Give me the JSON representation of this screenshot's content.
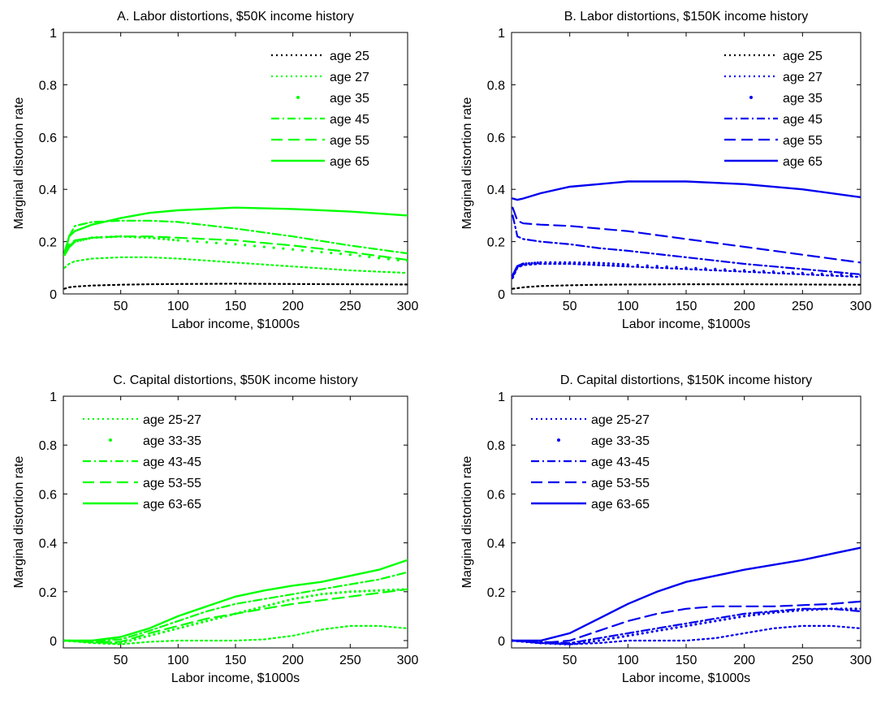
{
  "chart_data": [
    {
      "type": "line",
      "title": "A. Labor distortions, $50K income history",
      "xlabel": "Labor income, $1000s",
      "ylabel": "Marginal distortion rate",
      "xlim": [
        0,
        300
      ],
      "ylim": [
        0,
        1
      ],
      "xticks": [
        "50",
        "100",
        "150",
        "200",
        "250",
        "300"
      ],
      "yticks": [
        "0",
        "0.2",
        "0.4",
        "0.6",
        "0.8",
        "1"
      ],
      "legend_position": "top-right",
      "grid": false,
      "color": "#00ff00",
      "x": [
        1,
        5,
        10,
        25,
        50,
        75,
        100,
        150,
        200,
        250,
        300
      ],
      "series": [
        {
          "name": "age 25",
          "style": "dotted-black",
          "values": [
            0.02,
            0.025,
            0.028,
            0.032,
            0.035,
            0.037,
            0.038,
            0.039,
            0.038,
            0.037,
            0.036
          ]
        },
        {
          "name": "age 27",
          "style": "dotted",
          "values": [
            0.1,
            0.115,
            0.125,
            0.135,
            0.14,
            0.14,
            0.135,
            0.12,
            0.105,
            0.09,
            0.08
          ]
        },
        {
          "name": "age 35",
          "style": "dot",
          "values": [
            0.15,
            0.18,
            0.2,
            0.215,
            0.22,
            0.215,
            0.205,
            0.19,
            0.17,
            0.15,
            0.125
          ]
        },
        {
          "name": "age 45",
          "style": "dashdot",
          "values": [
            0.16,
            0.22,
            0.26,
            0.275,
            0.28,
            0.28,
            0.275,
            0.25,
            0.22,
            0.185,
            0.155
          ]
        },
        {
          "name": "age 55",
          "style": "dashed",
          "values": [
            0.15,
            0.19,
            0.205,
            0.215,
            0.22,
            0.22,
            0.215,
            0.205,
            0.185,
            0.16,
            0.13
          ]
        },
        {
          "name": "age 65",
          "style": "solid",
          "values": [
            0.15,
            0.22,
            0.24,
            0.265,
            0.29,
            0.31,
            0.32,
            0.33,
            0.325,
            0.315,
            0.3
          ]
        }
      ]
    },
    {
      "type": "line",
      "title": "B. Labor distortions, $150K income history",
      "xlabel": "Labor income, $1000s",
      "ylabel": "Marginal distortion rate",
      "xlim": [
        0,
        300
      ],
      "ylim": [
        0,
        1
      ],
      "xticks": [
        "50",
        "100",
        "150",
        "200",
        "250",
        "300"
      ],
      "yticks": [
        "0",
        "0.2",
        "0.4",
        "0.6",
        "0.8",
        "1"
      ],
      "legend_position": "top-right",
      "grid": false,
      "color": "#0000ee",
      "x": [
        1,
        5,
        10,
        25,
        50,
        75,
        100,
        150,
        200,
        250,
        300
      ],
      "series": [
        {
          "name": "age 25",
          "style": "dotted-black",
          "values": [
            0.02,
            0.022,
            0.025,
            0.03,
            0.033,
            0.035,
            0.036,
            0.037,
            0.037,
            0.036,
            0.035
          ]
        },
        {
          "name": "age 27",
          "style": "dotted",
          "values": [
            0.06,
            0.1,
            0.11,
            0.115,
            0.115,
            0.11,
            0.105,
            0.095,
            0.085,
            0.075,
            0.065
          ]
        },
        {
          "name": "age 35",
          "style": "dot",
          "values": [
            0.07,
            0.105,
            0.115,
            0.12,
            0.12,
            0.118,
            0.112,
            0.1,
            0.09,
            0.08,
            0.07
          ]
        },
        {
          "name": "age 45",
          "style": "dashdot",
          "values": [
            0.3,
            0.22,
            0.21,
            0.2,
            0.19,
            0.175,
            0.165,
            0.14,
            0.115,
            0.095,
            0.075
          ]
        },
        {
          "name": "age 55",
          "style": "dashed",
          "values": [
            0.33,
            0.28,
            0.27,
            0.265,
            0.26,
            0.25,
            0.24,
            0.21,
            0.18,
            0.15,
            0.12
          ]
        },
        {
          "name": "age 65",
          "style": "solid",
          "values": [
            0.365,
            0.36,
            0.365,
            0.385,
            0.41,
            0.42,
            0.43,
            0.43,
            0.42,
            0.4,
            0.37
          ]
        }
      ]
    },
    {
      "type": "line",
      "title": "C. Capital distortions, $50K income history",
      "xlabel": "Labor income, $1000s",
      "ylabel": "Marginal distortion rate",
      "xlim": [
        0,
        300
      ],
      "ylim": [
        -0.03,
        1
      ],
      "xticks": [
        "50",
        "100",
        "150",
        "200",
        "250",
        "300"
      ],
      "yticks": [
        "0",
        "0.2",
        "0.4",
        "0.6",
        "0.8",
        "1"
      ],
      "legend_position": "top-left",
      "grid": false,
      "color": "#00ff00",
      "x": [
        1,
        25,
        50,
        75,
        100,
        125,
        150,
        175,
        200,
        225,
        250,
        275,
        300
      ],
      "series": [
        {
          "name": "age 25-27",
          "style": "dotted",
          "values": [
            0.0,
            -0.01,
            -0.015,
            -0.005,
            0.0,
            0.0,
            0.0,
            0.005,
            0.02,
            0.045,
            0.06,
            0.06,
            0.05
          ]
        },
        {
          "name": "age 33-35",
          "style": "dot",
          "values": [
            0.0,
            -0.005,
            -0.01,
            0.02,
            0.05,
            0.08,
            0.11,
            0.14,
            0.17,
            0.19,
            0.2,
            0.205,
            0.21
          ]
        },
        {
          "name": "age 43-45",
          "style": "dashdot",
          "values": [
            0.0,
            0.0,
            0.005,
            0.04,
            0.08,
            0.12,
            0.15,
            0.17,
            0.19,
            0.21,
            0.23,
            0.25,
            0.28
          ]
        },
        {
          "name": "age 53-55",
          "style": "dashed",
          "values": [
            0.0,
            -0.005,
            -0.005,
            0.03,
            0.06,
            0.09,
            0.11,
            0.13,
            0.15,
            0.165,
            0.18,
            0.195,
            0.21
          ]
        },
        {
          "name": "age 63-65",
          "style": "solid",
          "values": [
            0.0,
            0.0,
            0.015,
            0.05,
            0.1,
            0.14,
            0.18,
            0.205,
            0.225,
            0.24,
            0.265,
            0.29,
            0.33
          ]
        }
      ]
    },
    {
      "type": "line",
      "title": "D. Capital distortions, $150K income history",
      "xlabel": "Labor income, $1000s",
      "ylabel": "Marginal distortion rate",
      "xlim": [
        0,
        300
      ],
      "ylim": [
        -0.03,
        1
      ],
      "xticks": [
        "50",
        "100",
        "150",
        "200",
        "250",
        "300"
      ],
      "yticks": [
        "0",
        "0.2",
        "0.4",
        "0.6",
        "0.8",
        "1"
      ],
      "legend_position": "top-left",
      "grid": false,
      "color": "#0000ee",
      "x": [
        1,
        25,
        50,
        75,
        100,
        125,
        150,
        175,
        200,
        225,
        250,
        275,
        300
      ],
      "series": [
        {
          "name": "age 25-27",
          "style": "dotted",
          "values": [
            0.0,
            -0.01,
            -0.015,
            -0.01,
            0.0,
            0.0,
            0.0,
            0.01,
            0.03,
            0.05,
            0.06,
            0.06,
            0.05
          ]
        },
        {
          "name": "age 33-35",
          "style": "dot",
          "values": [
            0.0,
            -0.01,
            -0.015,
            0.0,
            0.02,
            0.04,
            0.06,
            0.08,
            0.1,
            0.115,
            0.125,
            0.13,
            0.13
          ]
        },
        {
          "name": "age 43-45",
          "style": "dashdot",
          "values": [
            0.0,
            -0.005,
            -0.01,
            0.01,
            0.03,
            0.05,
            0.07,
            0.09,
            0.11,
            0.12,
            0.13,
            0.13,
            0.12
          ]
        },
        {
          "name": "age 53-55",
          "style": "dashed",
          "values": [
            0.0,
            -0.01,
            0.0,
            0.04,
            0.08,
            0.11,
            0.13,
            0.14,
            0.14,
            0.14,
            0.145,
            0.15,
            0.16
          ]
        },
        {
          "name": "age 63-65",
          "style": "solid",
          "values": [
            0.0,
            0.0,
            0.03,
            0.09,
            0.15,
            0.2,
            0.24,
            0.265,
            0.29,
            0.31,
            0.33,
            0.355,
            0.38
          ]
        }
      ]
    }
  ]
}
